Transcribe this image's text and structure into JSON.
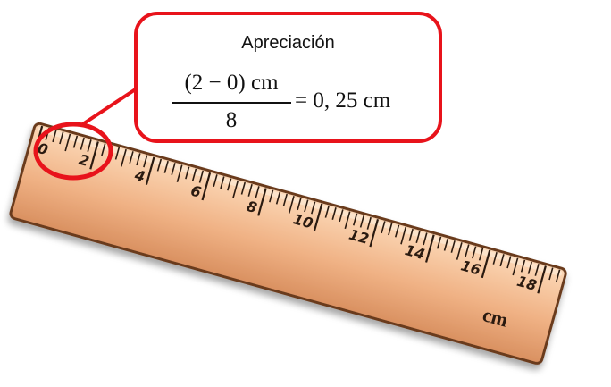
{
  "callout": {
    "title": "Apreciación",
    "numerator": "(2 − 0) cm",
    "denominator": "8",
    "result": "= 0, 25 cm"
  },
  "ruler": {
    "unit_label": "cm",
    "major_labels": [
      "0",
      "2",
      "4",
      "6",
      "8",
      "10",
      "12",
      "14",
      "16",
      "18"
    ],
    "subdivisions_per_2cm": 8
  },
  "colors": {
    "highlight": "#e8131b",
    "ruler_fill": "#f2b98e",
    "ruler_edge": "#6b3a1c"
  }
}
